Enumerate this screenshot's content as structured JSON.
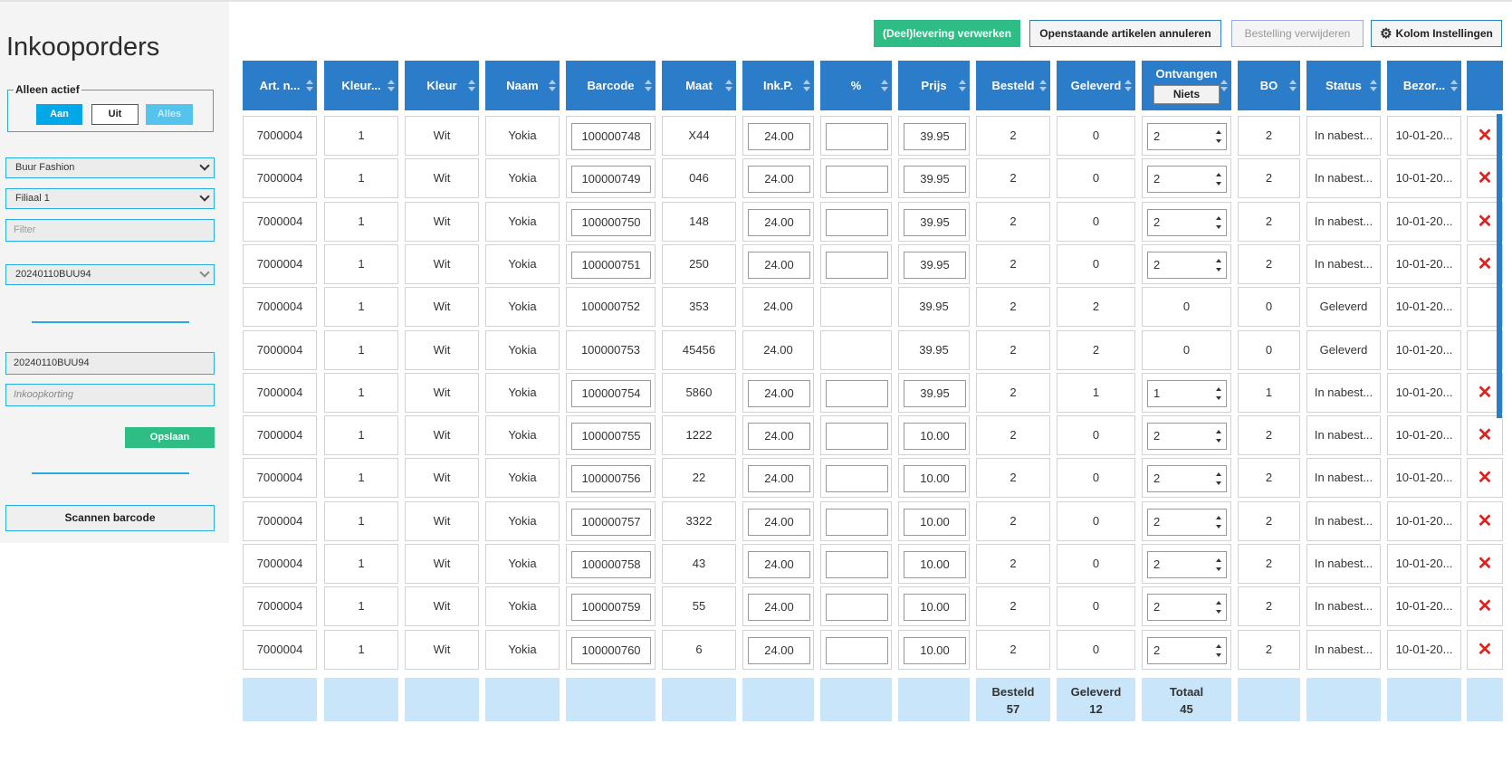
{
  "sidebar": {
    "title": "Inkooporders",
    "active_filter": {
      "legend": "Alleen actief",
      "on": "Aan",
      "off": "Uit",
      "all": "Alles"
    },
    "supplier_select": "Buur Fashion",
    "branch_select": "Filiaal 1",
    "filter_placeholder": "Filter",
    "order_select": "20240110BUU94",
    "order_number": "20240110BUU94",
    "discount_placeholder": "Inkoopkorting",
    "save_label": "Opslaan",
    "scan_label": "Scannen barcode"
  },
  "toolbar": {
    "process_label": "(Deel)levering verwerken",
    "cancel_label": "Openstaande artikelen annuleren",
    "delete_label": "Bestelling verwijderen",
    "columns_label": "Kolom Instellingen",
    "columns_icon": "gear-icon"
  },
  "table": {
    "headers": {
      "art": "Art. n...",
      "kleurnr": "Kleur...",
      "kleur": "Kleur",
      "naam": "Naam",
      "barcode": "Barcode",
      "maat": "Maat",
      "inkp": "Ink.P.",
      "pct": "%",
      "prijs": "Prijs",
      "besteld": "Besteld",
      "geleverd": "Geleverd",
      "ontvangen": "Ontvangen",
      "niets": "Niets",
      "bo": "BO",
      "status": "Status",
      "bezorg": "Bezor..."
    },
    "rows": [
      {
        "art": "7000004",
        "kleurnr": "1",
        "kleur": "Wit",
        "naam": "Yokia",
        "barcode": "100000748",
        "maat": "X44",
        "inkp": "24.00",
        "pct": "",
        "prijs": "39.95",
        "besteld": "2",
        "geleverd": "0",
        "ontvangen": "2",
        "bo": "2",
        "status": "In nabest...",
        "bezorg": "10-01-20...",
        "editable": true
      },
      {
        "art": "7000004",
        "kleurnr": "1",
        "kleur": "Wit",
        "naam": "Yokia",
        "barcode": "100000749",
        "maat": "046",
        "inkp": "24.00",
        "pct": "",
        "prijs": "39.95",
        "besteld": "2",
        "geleverd": "0",
        "ontvangen": "2",
        "bo": "2",
        "status": "In nabest...",
        "bezorg": "10-01-20...",
        "editable": true
      },
      {
        "art": "7000004",
        "kleurnr": "1",
        "kleur": "Wit",
        "naam": "Yokia",
        "barcode": "100000750",
        "maat": "148",
        "inkp": "24.00",
        "pct": "",
        "prijs": "39.95",
        "besteld": "2",
        "geleverd": "0",
        "ontvangen": "2",
        "bo": "2",
        "status": "In nabest...",
        "bezorg": "10-01-20...",
        "editable": true
      },
      {
        "art": "7000004",
        "kleurnr": "1",
        "kleur": "Wit",
        "naam": "Yokia",
        "barcode": "100000751",
        "maat": "250",
        "inkp": "24.00",
        "pct": "",
        "prijs": "39.95",
        "besteld": "2",
        "geleverd": "0",
        "ontvangen": "2",
        "bo": "2",
        "status": "In nabest...",
        "bezorg": "10-01-20...",
        "editable": true
      },
      {
        "art": "7000004",
        "kleurnr": "1",
        "kleur": "Wit",
        "naam": "Yokia",
        "barcode": "100000752",
        "maat": "353",
        "inkp": "24.00",
        "pct": "",
        "prijs": "39.95",
        "besteld": "2",
        "geleverd": "2",
        "ontvangen": "0",
        "bo": "0",
        "status": "Geleverd",
        "bezorg": "10-01-20...",
        "editable": false
      },
      {
        "art": "7000004",
        "kleurnr": "1",
        "kleur": "Wit",
        "naam": "Yokia",
        "barcode": "100000753",
        "maat": "45456",
        "inkp": "24.00",
        "pct": "",
        "prijs": "39.95",
        "besteld": "2",
        "geleverd": "2",
        "ontvangen": "0",
        "bo": "0",
        "status": "Geleverd",
        "bezorg": "10-01-20...",
        "editable": false
      },
      {
        "art": "7000004",
        "kleurnr": "1",
        "kleur": "Wit",
        "naam": "Yokia",
        "barcode": "100000754",
        "maat": "5860",
        "inkp": "24.00",
        "pct": "",
        "prijs": "39.95",
        "besteld": "2",
        "geleverd": "1",
        "ontvangen": "1",
        "bo": "1",
        "status": "In nabest...",
        "bezorg": "10-01-20...",
        "editable": true
      },
      {
        "art": "7000004",
        "kleurnr": "1",
        "kleur": "Wit",
        "naam": "Yokia",
        "barcode": "100000755",
        "maat": "1222",
        "inkp": "24.00",
        "pct": "",
        "prijs": "10.00",
        "besteld": "2",
        "geleverd": "0",
        "ontvangen": "2",
        "bo": "2",
        "status": "In nabest...",
        "bezorg": "10-01-20...",
        "editable": true
      },
      {
        "art": "7000004",
        "kleurnr": "1",
        "kleur": "Wit",
        "naam": "Yokia",
        "barcode": "100000756",
        "maat": "22",
        "inkp": "24.00",
        "pct": "",
        "prijs": "10.00",
        "besteld": "2",
        "geleverd": "0",
        "ontvangen": "2",
        "bo": "2",
        "status": "In nabest...",
        "bezorg": "10-01-20...",
        "editable": true
      },
      {
        "art": "7000004",
        "kleurnr": "1",
        "kleur": "Wit",
        "naam": "Yokia",
        "barcode": "100000757",
        "maat": "3322",
        "inkp": "24.00",
        "pct": "",
        "prijs": "10.00",
        "besteld": "2",
        "geleverd": "0",
        "ontvangen": "2",
        "bo": "2",
        "status": "In nabest...",
        "bezorg": "10-01-20...",
        "editable": true
      },
      {
        "art": "7000004",
        "kleurnr": "1",
        "kleur": "Wit",
        "naam": "Yokia",
        "barcode": "100000758",
        "maat": "43",
        "inkp": "24.00",
        "pct": "",
        "prijs": "10.00",
        "besteld": "2",
        "geleverd": "0",
        "ontvangen": "2",
        "bo": "2",
        "status": "In nabest...",
        "bezorg": "10-01-20...",
        "editable": true
      },
      {
        "art": "7000004",
        "kleurnr": "1",
        "kleur": "Wit",
        "naam": "Yokia",
        "barcode": "100000759",
        "maat": "55",
        "inkp": "24.00",
        "pct": "",
        "prijs": "10.00",
        "besteld": "2",
        "geleverd": "0",
        "ontvangen": "2",
        "bo": "2",
        "status": "In nabest...",
        "bezorg": "10-01-20...",
        "editable": true
      },
      {
        "art": "7000004",
        "kleurnr": "1",
        "kleur": "Wit",
        "naam": "Yokia",
        "barcode": "100000760",
        "maat": "6",
        "inkp": "24.00",
        "pct": "",
        "prijs": "10.00",
        "besteld": "2",
        "geleverd": "0",
        "ontvangen": "2",
        "bo": "2",
        "status": "In nabest...",
        "bezorg": "10-01-20...",
        "editable": true
      }
    ],
    "footer": {
      "besteld_label": "Besteld",
      "besteld_value": "57",
      "geleverd_label": "Geleverd",
      "geleverd_value": "12",
      "totaal_label": "Totaal",
      "totaal_value": "45"
    },
    "delete_icon": "close-icon",
    "colors": {
      "header": "#2b7cc9",
      "footer": "#c9e5fa",
      "delete": "#e0201c",
      "accent": "#29abe2",
      "success": "#2ebd85"
    }
  }
}
